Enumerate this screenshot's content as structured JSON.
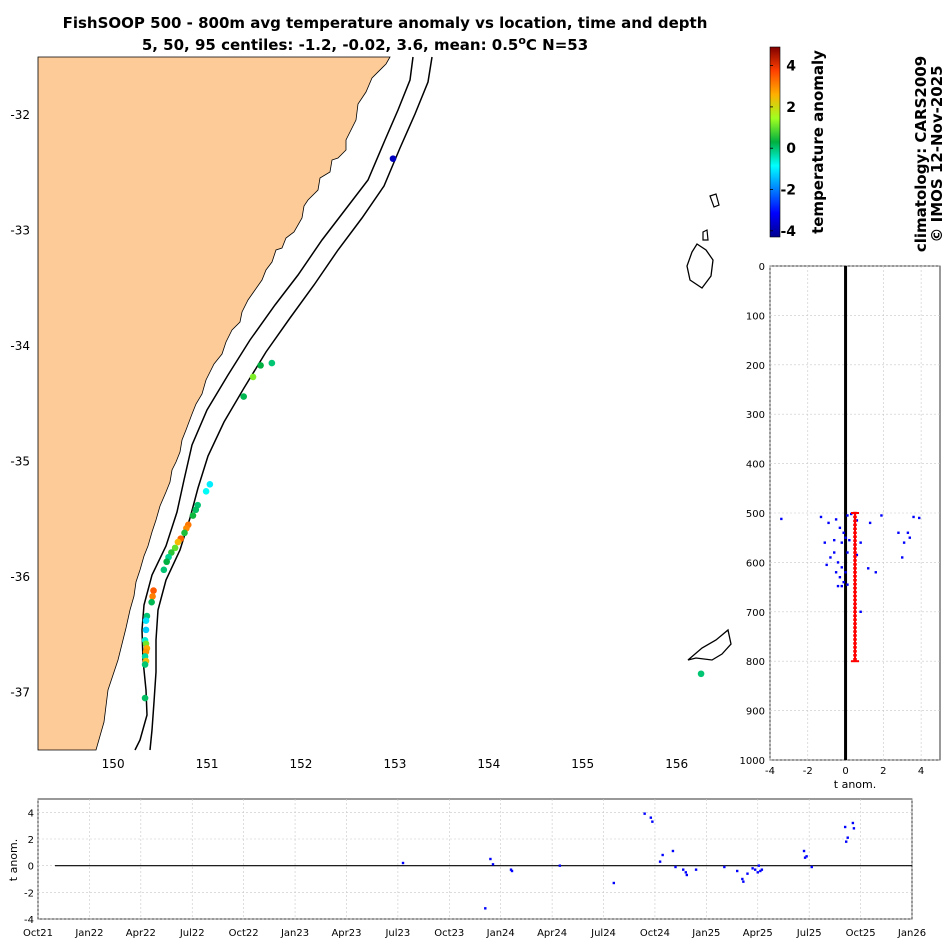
{
  "title": {
    "line1": "FishSOOP 500 - 800m avg temperature anomaly vs location, time and depth",
    "line2_prefix": "5, 50, 95 centiles: -1.2, -0.02, 3.6, mean: 0.5",
    "line2_deg": "o",
    "line2_suffix": "C N=53"
  },
  "side_text": {
    "climatology": "climatology: CARS2009",
    "credit": "© IMOS 12-Nov-2025"
  },
  "colors": {
    "land": "#fccb98",
    "coast": "#000000",
    "points": "#0000ff",
    "mean_bar": "#ff0000",
    "grid": "#c8c8c8"
  },
  "chart_data": [
    {
      "type": "scatter",
      "name": "map",
      "xlim": [
        149.2,
        156.6
      ],
      "ylim": [
        -37.5,
        -31.5
      ],
      "xticks": [
        "150",
        "151",
        "152",
        "153",
        "154",
        "155",
        "156"
      ],
      "xtick_values": [
        150,
        151,
        152,
        153,
        154,
        155,
        156
      ],
      "yticks": [
        "-32",
        "-33",
        "-34",
        "-35",
        "-36",
        "-37"
      ],
      "ytick_values": [
        -32,
        -33,
        -34,
        -35,
        -36,
        -37
      ],
      "points": [
        {
          "lon": 152.98,
          "lat": -32.38,
          "anom": -3.8
        },
        {
          "lon": 151.69,
          "lat": -34.15,
          "anom": 0.0
        },
        {
          "lon": 151.57,
          "lat": -34.17,
          "anom": 0.3
        },
        {
          "lon": 151.49,
          "lat": -34.27,
          "anom": 1.2
        },
        {
          "lon": 151.39,
          "lat": -34.44,
          "anom": 0.2
        },
        {
          "lon": 151.03,
          "lat": -35.2,
          "anom": -1.0
        },
        {
          "lon": 150.99,
          "lat": -35.26,
          "anom": -0.8
        },
        {
          "lon": 150.9,
          "lat": -35.38,
          "anom": 0.0
        },
        {
          "lon": 150.88,
          "lat": -35.42,
          "anom": 0.1
        },
        {
          "lon": 150.85,
          "lat": -35.47,
          "anom": 0.4
        },
        {
          "lon": 150.8,
          "lat": -35.55,
          "anom": 3.2
        },
        {
          "lon": 150.78,
          "lat": -35.58,
          "anom": 3.0
        },
        {
          "lon": 150.76,
          "lat": -35.62,
          "anom": 0.5
        },
        {
          "lon": 150.72,
          "lat": -35.67,
          "anom": 3.4
        },
        {
          "lon": 150.69,
          "lat": -35.7,
          "anom": 2.5
        },
        {
          "lon": 150.66,
          "lat": -35.75,
          "anom": 1.0
        },
        {
          "lon": 150.62,
          "lat": -35.79,
          "anom": 0.6
        },
        {
          "lon": 150.59,
          "lat": -35.83,
          "anom": -0.2
        },
        {
          "lon": 150.57,
          "lat": -35.87,
          "anom": 0.3
        },
        {
          "lon": 150.54,
          "lat": -35.94,
          "anom": 0.0
        },
        {
          "lon": 150.43,
          "lat": -36.12,
          "anom": 3.5
        },
        {
          "lon": 150.42,
          "lat": -36.17,
          "anom": 3.1
        },
        {
          "lon": 150.41,
          "lat": -36.22,
          "anom": 0.2
        },
        {
          "lon": 150.36,
          "lat": -36.34,
          "anom": 0.0
        },
        {
          "lon": 150.35,
          "lat": -36.38,
          "anom": -1.1
        },
        {
          "lon": 150.35,
          "lat": -36.46,
          "anom": -1.3
        },
        {
          "lon": 150.34,
          "lat": -36.55,
          "anom": -0.6
        },
        {
          "lon": 150.35,
          "lat": -36.58,
          "anom": 1.1
        },
        {
          "lon": 150.36,
          "lat": -36.62,
          "anom": 2.7
        },
        {
          "lon": 150.35,
          "lat": -36.65,
          "anom": 2.9
        },
        {
          "lon": 150.34,
          "lat": -36.69,
          "anom": -0.3
        },
        {
          "lon": 150.35,
          "lat": -36.73,
          "anom": 2.4
        },
        {
          "lon": 150.34,
          "lat": -36.76,
          "anom": 0.0
        },
        {
          "lon": 150.34,
          "lat": -37.05,
          "anom": 0.1
        },
        {
          "lon": 156.26,
          "lat": -36.84,
          "anom": 0.0
        }
      ]
    },
    {
      "type": "colorbar",
      "name": "colorbar",
      "label": "temperature anomaly",
      "range": [
        -4.3,
        4.9
      ],
      "ticks": [
        "4",
        "2",
        "0",
        "-2",
        "-4"
      ],
      "tick_values": [
        4,
        2,
        0,
        -2,
        -4
      ],
      "colormap": "jet"
    },
    {
      "type": "scatter",
      "name": "depth_profile",
      "xlabel": "t anom.",
      "xlim": [
        -4,
        5
      ],
      "xticks": [
        "-4",
        "-2",
        "0",
        "2",
        "4"
      ],
      "xtick_values": [
        -4,
        -2,
        0,
        2,
        4
      ],
      "ylim": [
        0,
        1000
      ],
      "yticks": [
        "0",
        "100",
        "200",
        "300",
        "400",
        "500",
        "600",
        "700",
        "800",
        "900",
        "1000"
      ],
      "ytick_values": [
        0,
        100,
        200,
        300,
        400,
        500,
        600,
        700,
        800,
        900,
        1000
      ],
      "mean": 0.5,
      "depth_range": [
        500,
        800
      ],
      "points": [
        {
          "anom": -3.4,
          "depth": 512
        },
        {
          "anom": -1.3,
          "depth": 508
        },
        {
          "anom": -0.9,
          "depth": 520
        },
        {
          "anom": -0.5,
          "depth": 513
        },
        {
          "anom": -0.3,
          "depth": 530
        },
        {
          "anom": -0.1,
          "depth": 540
        },
        {
          "anom": 0.1,
          "depth": 505
        },
        {
          "anom": 0.3,
          "depth": 502
        },
        {
          "anom": 0.6,
          "depth": 515
        },
        {
          "anom": 1.9,
          "depth": 505
        },
        {
          "anom": 1.3,
          "depth": 520
        },
        {
          "anom": 3.6,
          "depth": 508
        },
        {
          "anom": 3.9,
          "depth": 510
        },
        {
          "anom": 3.3,
          "depth": 540
        },
        {
          "anom": 3.4,
          "depth": 550
        },
        {
          "anom": 3.1,
          "depth": 560
        },
        {
          "anom": 2.8,
          "depth": 540
        },
        {
          "anom": 3.0,
          "depth": 590
        },
        {
          "anom": -1.1,
          "depth": 560
        },
        {
          "anom": -0.6,
          "depth": 555
        },
        {
          "anom": -0.2,
          "depth": 560
        },
        {
          "anom": 0.0,
          "depth": 550
        },
        {
          "anom": 0.2,
          "depth": 555
        },
        {
          "anom": 0.8,
          "depth": 560
        },
        {
          "anom": -1.0,
          "depth": 605
        },
        {
          "anom": -0.4,
          "depth": 600
        },
        {
          "anom": -0.2,
          "depth": 610
        },
        {
          "anom": 0.0,
          "depth": 620
        },
        {
          "anom": -0.3,
          "depth": 630
        },
        {
          "anom": -0.1,
          "depth": 640
        },
        {
          "anom": -0.4,
          "depth": 648
        },
        {
          "anom": -0.2,
          "depth": 648
        },
        {
          "anom": 0.1,
          "depth": 645
        },
        {
          "anom": 0.6,
          "depth": 585
        },
        {
          "anom": 1.2,
          "depth": 612
        },
        {
          "anom": 1.6,
          "depth": 620
        },
        {
          "anom": 0.8,
          "depth": 700
        },
        {
          "anom": -0.6,
          "depth": 580
        },
        {
          "anom": -0.5,
          "depth": 620
        },
        {
          "anom": 0.1,
          "depth": 580
        },
        {
          "anom": -0.8,
          "depth": 590
        }
      ]
    },
    {
      "type": "scatter",
      "name": "time_series",
      "ylabel": "t anom.",
      "ylim": [
        -4,
        5
      ],
      "yticks": [
        "4",
        "2",
        "0",
        "-2",
        "-4"
      ],
      "ytick_values": [
        4,
        2,
        0,
        -2,
        -4
      ],
      "xticks": [
        "Oct21",
        "Jan22",
        "Apr22",
        "Jul22",
        "Oct22",
        "Jan23",
        "Apr23",
        "Jul23",
        "Oct23",
        "Jan24",
        "Apr24",
        "Jul24",
        "Oct24",
        "Jan25",
        "Apr25",
        "Jul25",
        "Oct25",
        "Jan26"
      ],
      "points": [
        {
          "t": 7.1,
          "v": 0.2
        },
        {
          "t": 8.7,
          "v": -3.2
        },
        {
          "t": 8.8,
          "v": 0.5
        },
        {
          "t": 8.85,
          "v": 0.1
        },
        {
          "t": 9.2,
          "v": -0.3
        },
        {
          "t": 9.22,
          "v": -0.4
        },
        {
          "t": 10.15,
          "v": 0.0
        },
        {
          "t": 11.2,
          "v": -1.3
        },
        {
          "t": 11.8,
          "v": 3.9
        },
        {
          "t": 11.92,
          "v": 3.6
        },
        {
          "t": 11.95,
          "v": 3.3
        },
        {
          "t": 12.1,
          "v": 0.3
        },
        {
          "t": 12.15,
          "v": 0.8
        },
        {
          "t": 12.35,
          "v": 1.1
        },
        {
          "t": 12.4,
          "v": -0.1
        },
        {
          "t": 12.55,
          "v": -0.3
        },
        {
          "t": 12.6,
          "v": -0.5
        },
        {
          "t": 12.62,
          "v": -0.7
        },
        {
          "t": 12.8,
          "v": -0.3
        },
        {
          "t": 13.35,
          "v": -0.1
        },
        {
          "t": 13.6,
          "v": -0.4
        },
        {
          "t": 13.7,
          "v": -1.0
        },
        {
          "t": 13.72,
          "v": -1.2
        },
        {
          "t": 13.8,
          "v": -0.6
        },
        {
          "t": 13.9,
          "v": -0.2
        },
        {
          "t": 13.95,
          "v": -0.3
        },
        {
          "t": 14.0,
          "v": -0.5
        },
        {
          "t": 14.02,
          "v": 0.0
        },
        {
          "t": 14.05,
          "v": -0.4
        },
        {
          "t": 14.08,
          "v": -0.3
        },
        {
          "t": 14.9,
          "v": 1.1
        },
        {
          "t": 14.92,
          "v": 0.6
        },
        {
          "t": 14.95,
          "v": 0.7
        },
        {
          "t": 15.05,
          "v": -0.1
        },
        {
          "t": 15.7,
          "v": 2.9
        },
        {
          "t": 15.72,
          "v": 1.8
        },
        {
          "t": 15.75,
          "v": 2.1
        },
        {
          "t": 15.85,
          "v": 3.2
        },
        {
          "t": 15.87,
          "v": 2.8
        }
      ]
    }
  ]
}
